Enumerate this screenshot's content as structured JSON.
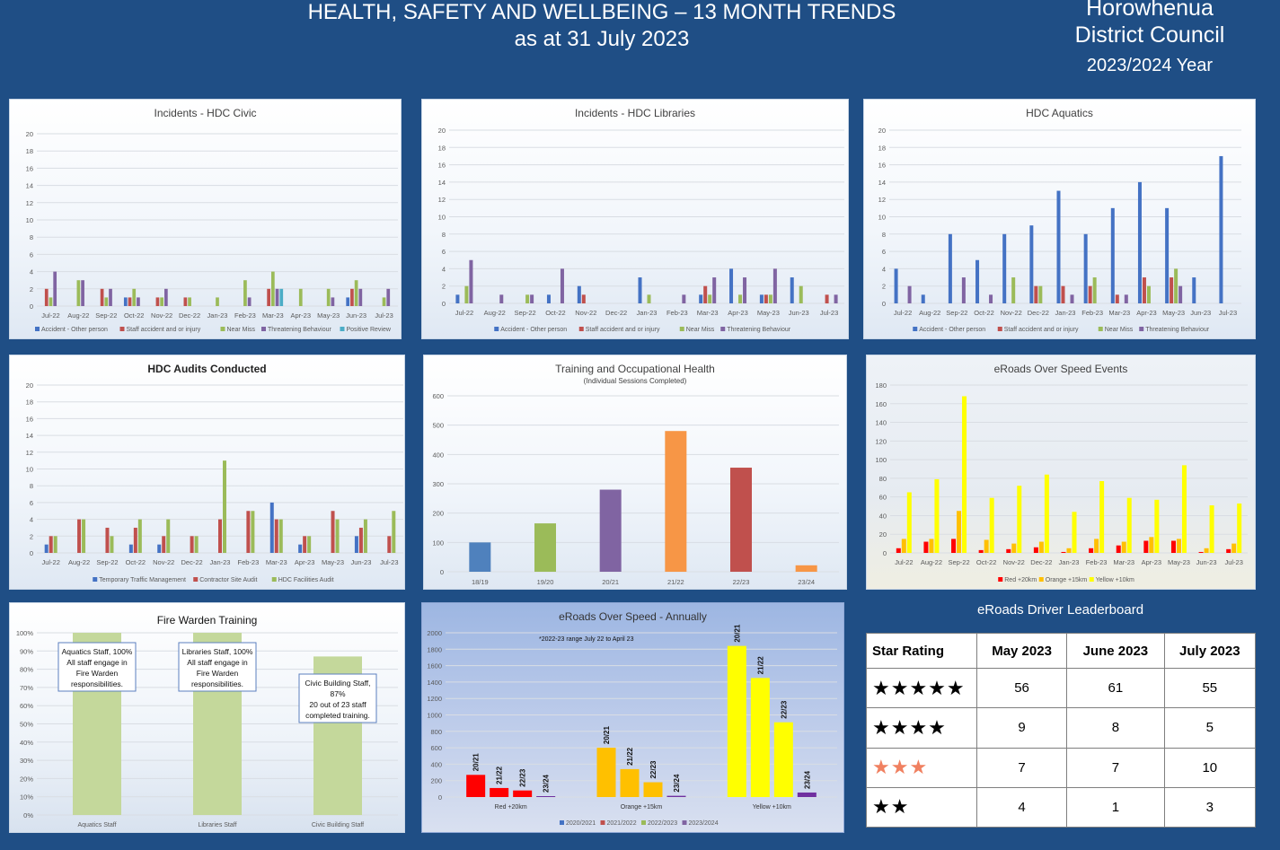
{
  "header": {
    "title_line1": "HEALTH, SAFETY AND WELLBEING – 13 MONTH TRENDS",
    "title_line2": "as at 31 July 2023",
    "org_line1": "Horowhenua",
    "org_line2": "District Council",
    "year": "2023/2024 Year"
  },
  "chart_data": [
    {
      "id": "civic",
      "type": "bar",
      "title": "Incidents - HDC Civic",
      "categories": [
        "Jul-22",
        "Aug-22",
        "Sep-22",
        "Oct-22",
        "Nov-22",
        "Dec-22",
        "Jan-23",
        "Feb-23",
        "Mar-23",
        "Apr-23",
        "May-23",
        "Jun-23",
        "Jul-23"
      ],
      "ylim": [
        0,
        20
      ],
      "yticks": [
        0,
        2,
        4,
        6,
        8,
        10,
        12,
        14,
        16,
        18,
        20
      ],
      "series": [
        {
          "name": "Accident - Other person",
          "color": "#4472c4",
          "values": [
            0,
            0,
            0,
            1,
            0,
            0,
            0,
            0,
            0,
            0,
            0,
            1,
            0
          ]
        },
        {
          "name": "Staff accident and or injury",
          "color": "#c0504d",
          "values": [
            2,
            0,
            2,
            1,
            1,
            1,
            0,
            0,
            2,
            0,
            0,
            2,
            0
          ]
        },
        {
          "name": "Near Miss",
          "color": "#9bbb59",
          "values": [
            1,
            3,
            1,
            2,
            1,
            1,
            1,
            3,
            4,
            2,
            2,
            3,
            1
          ]
        },
        {
          "name": "Threatening Behaviour",
          "color": "#8064a2",
          "values": [
            4,
            3,
            2,
            1,
            2,
            0,
            0,
            1,
            2,
            0,
            1,
            2,
            2
          ]
        },
        {
          "name": "Positive Review",
          "color": "#4bacc6",
          "values": [
            0,
            0,
            0,
            0,
            0,
            0,
            0,
            0,
            2,
            0,
            0,
            0,
            0
          ]
        }
      ]
    },
    {
      "id": "libraries",
      "type": "bar",
      "title": "Incidents - HDC Libraries",
      "categories": [
        "Jul-22",
        "Aug-22",
        "Sep-22",
        "Oct-22",
        "Nov-22",
        "Dec-22",
        "Jan-23",
        "Feb-23",
        "Mar-23",
        "Apr-23",
        "May-23",
        "Jun-23",
        "Jul-23"
      ],
      "ylim": [
        0,
        20
      ],
      "yticks": [
        0,
        2,
        4,
        6,
        8,
        10,
        12,
        14,
        16,
        18,
        20
      ],
      "series": [
        {
          "name": "Accident - Other person",
          "color": "#4472c4",
          "values": [
            1,
            0,
            0,
            1,
            2,
            0,
            3,
            0,
            1,
            4,
            1,
            3,
            0
          ]
        },
        {
          "name": "Staff accident and or injury",
          "color": "#c0504d",
          "values": [
            0,
            0,
            0,
            0,
            1,
            0,
            0,
            0,
            2,
            0,
            1,
            0,
            1
          ]
        },
        {
          "name": "Near Miss",
          "color": "#9bbb59",
          "values": [
            2,
            0,
            1,
            0,
            0,
            0,
            1,
            0,
            1,
            1,
            1,
            2,
            0
          ]
        },
        {
          "name": "Threatening Behaviour",
          "color": "#8064a2",
          "values": [
            5,
            1,
            1,
            4,
            0,
            0,
            0,
            1,
            3,
            3,
            4,
            0,
            1
          ]
        }
      ]
    },
    {
      "id": "aquatics",
      "type": "bar",
      "title": "HDC Aquatics",
      "categories": [
        "Jul-22",
        "Aug-22",
        "Sep-22",
        "Oct-22",
        "Nov-22",
        "Dec-22",
        "Jan-23",
        "Feb-23",
        "Mar-23",
        "Apr-23",
        "May-23",
        "Jun-23",
        "Jul-23"
      ],
      "ylim": [
        0,
        20
      ],
      "yticks": [
        0,
        2,
        4,
        6,
        8,
        10,
        12,
        14,
        16,
        18,
        20
      ],
      "series": [
        {
          "name": "Accident - Other person",
          "color": "#4472c4",
          "values": [
            4,
            1,
            8,
            5,
            8,
            9,
            13,
            8,
            11,
            14,
            11,
            3,
            17
          ]
        },
        {
          "name": "Staff accident and or injury",
          "color": "#c0504d",
          "values": [
            0,
            0,
            0,
            0,
            0,
            2,
            2,
            2,
            1,
            3,
            3,
            0,
            0
          ]
        },
        {
          "name": "Near Miss",
          "color": "#9bbb59",
          "values": [
            0,
            0,
            0,
            0,
            3,
            2,
            0,
            3,
            0,
            2,
            4,
            0,
            0
          ]
        },
        {
          "name": "Threatening Behaviour",
          "color": "#8064a2",
          "values": [
            2,
            0,
            3,
            1,
            0,
            0,
            1,
            0,
            1,
            0,
            2,
            0,
            0
          ]
        }
      ]
    },
    {
      "id": "audits",
      "type": "bar",
      "title": "HDC Audits Conducted",
      "categories": [
        "Jul-22",
        "Aug-22",
        "Sep-22",
        "Oct-22",
        "Nov-22",
        "Dec-22",
        "Jan-23",
        "Feb-23",
        "Mar-23",
        "Apr-23",
        "May-23",
        "Jun-23",
        "Jul-23"
      ],
      "ylim": [
        0,
        20
      ],
      "yticks": [
        0,
        2,
        4,
        6,
        8,
        10,
        12,
        14,
        16,
        18,
        20
      ],
      "series": [
        {
          "name": "Temporary Traffic Management",
          "color": "#4472c4",
          "values": [
            1,
            0,
            0,
            1,
            1,
            0,
            0,
            0,
            6,
            1,
            0,
            2,
            0
          ]
        },
        {
          "name": "Contractor Site Audit",
          "color": "#c0504d",
          "values": [
            2,
            4,
            3,
            3,
            2,
            2,
            4,
            5,
            4,
            2,
            5,
            3,
            2
          ]
        },
        {
          "name": "HDC Facilities Audit",
          "color": "#9bbb59",
          "values": [
            2,
            4,
            2,
            4,
            4,
            2,
            11,
            5,
            4,
            2,
            4,
            4,
            5
          ]
        }
      ]
    },
    {
      "id": "training",
      "type": "bar",
      "title": "Training and Occupational Health",
      "subtitle": "(Individual Sessions Completed)",
      "categories": [
        "18/19",
        "19/20",
        "20/21",
        "21/22",
        "22/23",
        "23/24"
      ],
      "ylim": [
        0,
        600
      ],
      "yticks": [
        0,
        100,
        200,
        300,
        400,
        500,
        600
      ],
      "colors": [
        "#4f81bd",
        "#9bbb59",
        "#8064a2",
        "#f79646",
        "#c0504d",
        "#f79646"
      ],
      "values": [
        100,
        165,
        280,
        480,
        355,
        22
      ]
    },
    {
      "id": "eroads",
      "type": "bar",
      "title": "eRoads Over Speed Events",
      "categories": [
        "Jul-22",
        "Aug-22",
        "Sep-22",
        "Oct-22",
        "Nov-22",
        "Dec-22",
        "Jan-23",
        "Feb-23",
        "Mar-23",
        "Apr-23",
        "May-23",
        "Jun-23",
        "Jul-23"
      ],
      "ylim": [
        0,
        180
      ],
      "yticks": [
        0,
        20,
        40,
        60,
        80,
        100,
        120,
        140,
        160,
        180
      ],
      "series": [
        {
          "name": "Red +20km",
          "color": "#ff0000",
          "values": [
            5,
            12,
            15,
            3,
            4,
            6,
            1,
            5,
            8,
            13,
            13,
            1,
            4
          ]
        },
        {
          "name": "Orange +15km",
          "color": "#ffc000",
          "values": [
            15,
            15,
            45,
            14,
            10,
            12,
            5,
            15,
            12,
            17,
            15,
            5,
            10
          ]
        },
        {
          "name": "Yellow +10km",
          "color": "#ffff00",
          "values": [
            65,
            79,
            168,
            59,
            72,
            84,
            44,
            77,
            59,
            57,
            94,
            51,
            53
          ]
        }
      ]
    },
    {
      "id": "fire",
      "type": "bar",
      "title": "Fire Warden Training",
      "categories": [
        "Aquatics Staff",
        "Libraries Staff",
        "Civic Building Staff"
      ],
      "values": [
        100,
        100,
        87
      ],
      "ylim": [
        0,
        100
      ],
      "yticks": [
        "0%",
        "10%",
        "20%",
        "30%",
        "40%",
        "50%",
        "60%",
        "70%",
        "80%",
        "90%",
        "100%"
      ],
      "color": "#c4d89b",
      "annotations": [
        [
          "Aquatics Staff, 100%",
          "All staff engage in",
          "Fire Warden",
          "responsibilities."
        ],
        [
          "Libraries Staff, 100%",
          "All staff engage in",
          "Fire Warden",
          "responsibilities."
        ],
        [
          "Civic Building Staff,",
          "87%",
          "20 out of 23 staff",
          "completed training."
        ]
      ]
    },
    {
      "id": "annual",
      "type": "bar",
      "title": "eRoads Over Speed - Annually",
      "note": "*2022-23 range July 22 to April 23",
      "categories": [
        "Red +20km",
        "Orange +15km",
        "Yellow +10km"
      ],
      "ylim": [
        0,
        2000
      ],
      "yticks": [
        0,
        200,
        400,
        600,
        800,
        1000,
        1200,
        1400,
        1600,
        1800,
        2000
      ],
      "series_names": [
        "2020/2021",
        "2021/2022",
        "2022/2023",
        "2023/2024"
      ],
      "legend_colors": [
        "#4472c4",
        "#c0504d",
        "#9bbb59",
        "#8064a2"
      ],
      "bar_labels": [
        "20/21",
        "21/22",
        "22/23",
        "23/24"
      ],
      "group_colors": [
        "#ff0000",
        "#ffc000",
        "#ffff00"
      ],
      "last_color": "#7030a0",
      "values": [
        [
          270,
          110,
          80,
          5
        ],
        [
          600,
          340,
          180,
          15
        ],
        [
          1840,
          1450,
          910,
          55
        ]
      ]
    }
  ],
  "leaderboard": {
    "title": "eRoads Driver Leaderboard",
    "headers": [
      "Star Rating",
      "May 2023",
      "June 2023",
      "July 2023"
    ],
    "rows": [
      {
        "stars": "★★★★★",
        "star_color": "#f5c400",
        "values": [
          "56",
          "61",
          "55"
        ]
      },
      {
        "stars": "★★★★",
        "star_color": "#f5c400",
        "values": [
          "9",
          "8",
          "5"
        ]
      },
      {
        "stars": "★★★",
        "star_color": "#f08060",
        "values": [
          "7",
          "7",
          "10"
        ]
      },
      {
        "stars": "★★",
        "star_color": "#f05050",
        "values": [
          "4",
          "1",
          "3"
        ]
      }
    ]
  }
}
